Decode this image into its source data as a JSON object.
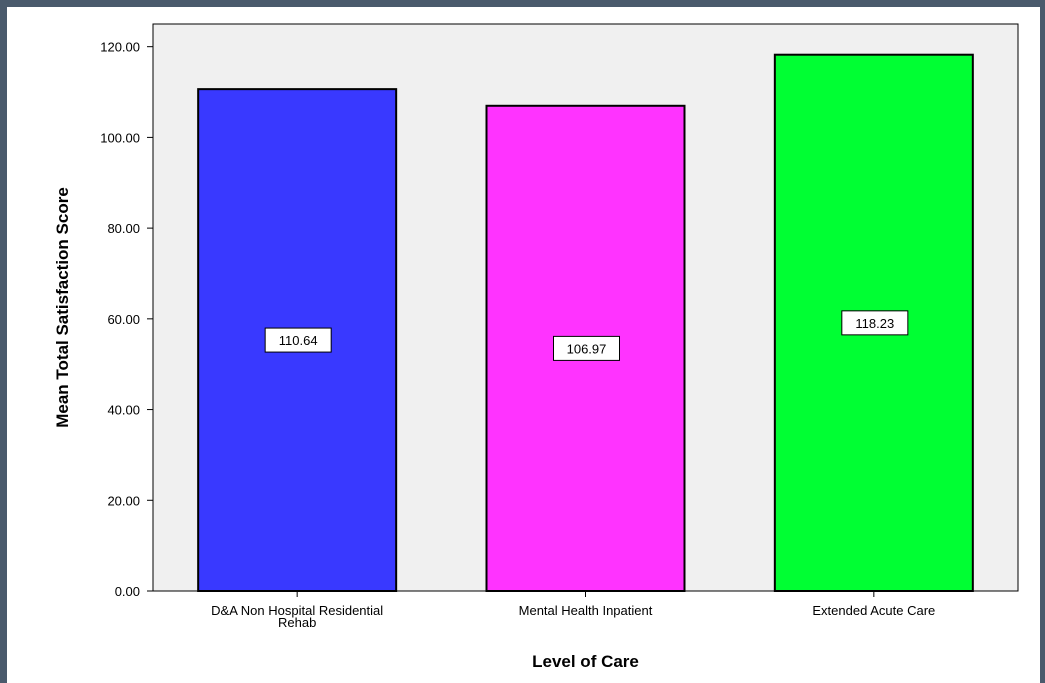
{
  "chart_data": {
    "type": "bar",
    "title": "",
    "xlabel": "Level of Care",
    "ylabel": "Mean Total Satisfaction Score",
    "categories": [
      [
        "D&A Non Hospital Residential",
        "Rehab"
      ],
      [
        "Mental Health Inpatient"
      ],
      [
        "Extended Acute Care"
      ]
    ],
    "values": [
      110.64,
      106.97,
      118.23
    ],
    "data_labels": [
      "110.64",
      "106.97",
      "118.23"
    ],
    "colors": [
      "#3939ff",
      "#ff33ff",
      "#00ff33"
    ],
    "ylim": [
      0,
      125
    ],
    "yticks": [
      0,
      20,
      40,
      60,
      80,
      100,
      120
    ],
    "ytick_labels": [
      "0.00",
      "20.00",
      "40.00",
      "60.00",
      "80.00",
      "100.00",
      "120.00"
    ],
    "plot_background": "#f0f0f0",
    "grid": false,
    "legend": "none"
  }
}
